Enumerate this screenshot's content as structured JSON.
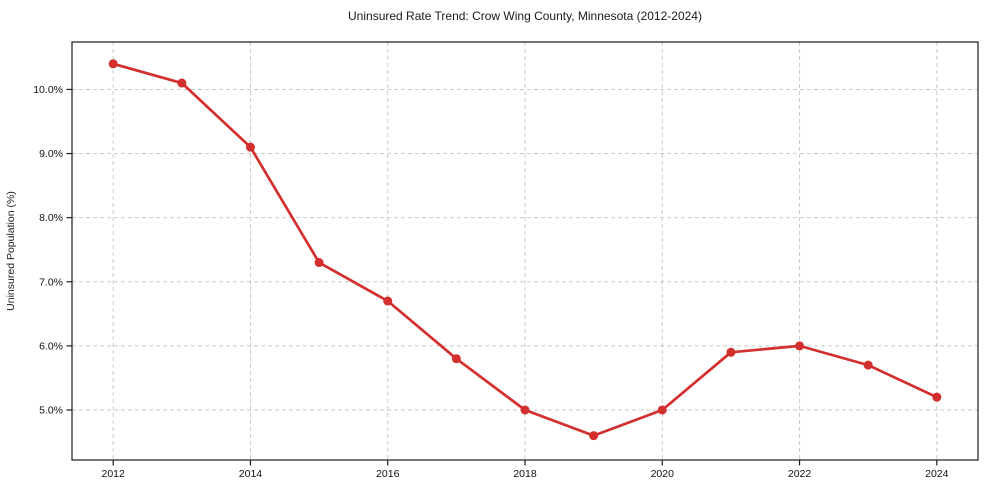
{
  "chart_data": {
    "type": "line",
    "title": "Uninsured Rate Trend: Crow Wing County, Minnesota (2012-2024)",
    "xlabel": "",
    "ylabel": "Uninsured Population (%)",
    "x": [
      2012,
      2013,
      2014,
      2015,
      2016,
      2017,
      2018,
      2019,
      2020,
      2021,
      2022,
      2023,
      2024
    ],
    "values": [
      10.4,
      10.1,
      9.1,
      7.3,
      6.7,
      5.8,
      5.0,
      4.6,
      5.0,
      5.9,
      6.0,
      5.7,
      5.2
    ],
    "xticks": [
      2012,
      2014,
      2016,
      2018,
      2020,
      2022,
      2024
    ],
    "xtick_labels": [
      "2012",
      "2014",
      "2016",
      "2018",
      "2020",
      "2022",
      "2024"
    ],
    "yticks": [
      5,
      6,
      7,
      8,
      9,
      10
    ],
    "ytick_labels": [
      "5.0%",
      "6.0%",
      "7.0%",
      "8.0%",
      "9.0%",
      "10.0%"
    ],
    "xlim": [
      2011.4,
      2024.6
    ],
    "ylim": [
      4.22,
      10.74
    ],
    "grid": true,
    "grid_style": "dashed",
    "legend_position": "none",
    "line_color": "#d32f2f",
    "marker": "circle",
    "grid_color": "#c9c9c9",
    "spine_color": "#1a1a1a",
    "background_color": "#ffffff"
  }
}
